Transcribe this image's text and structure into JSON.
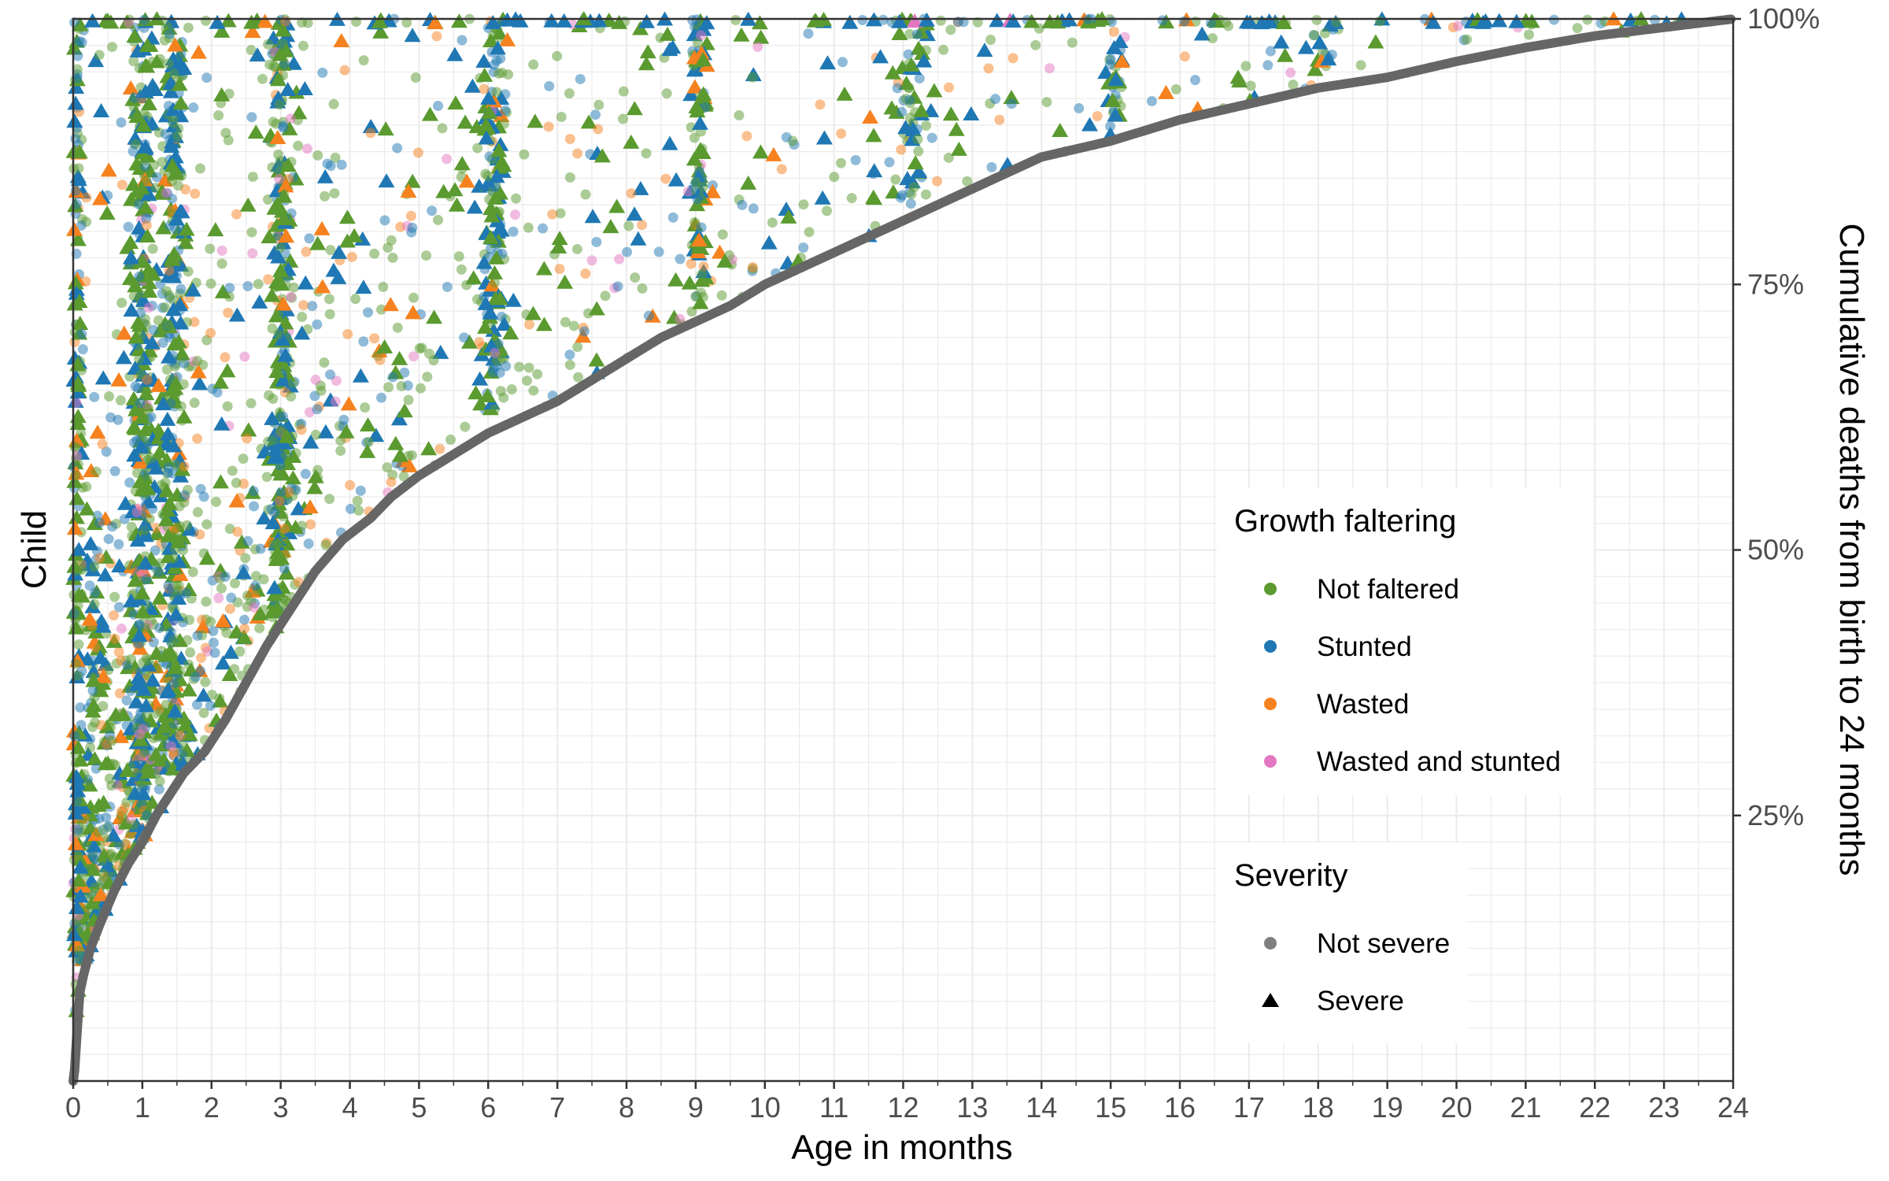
{
  "chart_data": {
    "type": "scatter",
    "title": "",
    "xlabel": "Age in months",
    "ylabel": "Child",
    "y2label": "Cumulative deaths from birth to 24 months",
    "xlim": [
      0,
      24
    ],
    "ylim": [
      0,
      100
    ],
    "x_ticks": [
      "0",
      "1",
      "2",
      "3",
      "4",
      "5",
      "6",
      "7",
      "8",
      "9",
      "10",
      "11",
      "12",
      "13",
      "14",
      "15",
      "16",
      "17",
      "18",
      "19",
      "20",
      "21",
      "22",
      "23",
      "24"
    ],
    "y2_ticks": [
      {
        "value": 25,
        "label": "25%"
      },
      {
        "value": 50,
        "label": "50%"
      },
      {
        "value": 75,
        "label": "75%"
      },
      {
        "value": 100,
        "label": "100%"
      }
    ],
    "grid": true,
    "legend_position": "right-inside",
    "growth_legend": {
      "title": "Growth faltering",
      "items": [
        {
          "label": "Not faltered",
          "color": "#5a9a2f"
        },
        {
          "label": "Stunted",
          "color": "#1f78b4"
        },
        {
          "label": "Wasted",
          "color": "#f5821f"
        },
        {
          "label": "Wasted and stunted",
          "color": "#e377c2"
        }
      ]
    },
    "severity_legend": {
      "title": "Severity",
      "items": [
        {
          "label": "Not severe",
          "shape": "circle"
        },
        {
          "label": "Severe",
          "shape": "triangle"
        }
      ]
    },
    "death_curve": {
      "color": "#666666",
      "points": [
        [
          0.0,
          0
        ],
        [
          0.02,
          1
        ],
        [
          0.04,
          3
        ],
        [
          0.06,
          5
        ],
        [
          0.08,
          7
        ],
        [
          0.1,
          8.5
        ],
        [
          0.15,
          10
        ],
        [
          0.25,
          12.5
        ],
        [
          0.4,
          15
        ],
        [
          0.6,
          18
        ],
        [
          0.8,
          20.5
        ],
        [
          1.0,
          22.5
        ],
        [
          1.2,
          25
        ],
        [
          1.4,
          27
        ],
        [
          1.6,
          29
        ],
        [
          1.9,
          31
        ],
        [
          2.2,
          34
        ],
        [
          2.5,
          37.5
        ],
        [
          2.8,
          41
        ],
        [
          3.1,
          44
        ],
        [
          3.5,
          48
        ],
        [
          3.9,
          51
        ],
        [
          4.3,
          53
        ],
        [
          4.6,
          55
        ],
        [
          5.0,
          57
        ],
        [
          5.5,
          59
        ],
        [
          6.0,
          61
        ],
        [
          6.5,
          62.5
        ],
        [
          7.0,
          64
        ],
        [
          7.5,
          66
        ],
        [
          8.0,
          68
        ],
        [
          8.5,
          70
        ],
        [
          9.0,
          71.5
        ],
        [
          9.5,
          73
        ],
        [
          10.0,
          75
        ],
        [
          10.5,
          76.5
        ],
        [
          11.0,
          78
        ],
        [
          11.5,
          79.5
        ],
        [
          12.0,
          81
        ],
        [
          12.5,
          82.5
        ],
        [
          13.0,
          84
        ],
        [
          13.5,
          85.5
        ],
        [
          14.0,
          87
        ],
        [
          15.0,
          88.5
        ],
        [
          16.0,
          90.5
        ],
        [
          17.0,
          92
        ],
        [
          18.0,
          93.5
        ],
        [
          19.0,
          94.5
        ],
        [
          20.0,
          96
        ],
        [
          21.0,
          97.3
        ],
        [
          22.0,
          98.4
        ],
        [
          23.0,
          99.2
        ],
        [
          24.0,
          100
        ]
      ]
    },
    "measurement_clusters": [
      {
        "age": 0.05,
        "spread": 0.04,
        "density": 0.4
      },
      {
        "age": 1.0,
        "spread": 0.08,
        "density": 1.0
      },
      {
        "age": 1.45,
        "spread": 0.1,
        "density": 1.0
      },
      {
        "age": 3.0,
        "spread": 0.08,
        "density": 1.0
      },
      {
        "age": 6.1,
        "spread": 0.1,
        "density": 0.95
      },
      {
        "age": 9.05,
        "spread": 0.07,
        "density": 0.8
      },
      {
        "age": 12.1,
        "spread": 0.12,
        "density": 0.9
      },
      {
        "age": 15.05,
        "spread": 0.07,
        "density": 0.75
      },
      {
        "age": 18.1,
        "spread": 0.08,
        "density": 0.7
      },
      {
        "age": 21.1,
        "spread": 0.07,
        "density": 0.25
      }
    ]
  }
}
